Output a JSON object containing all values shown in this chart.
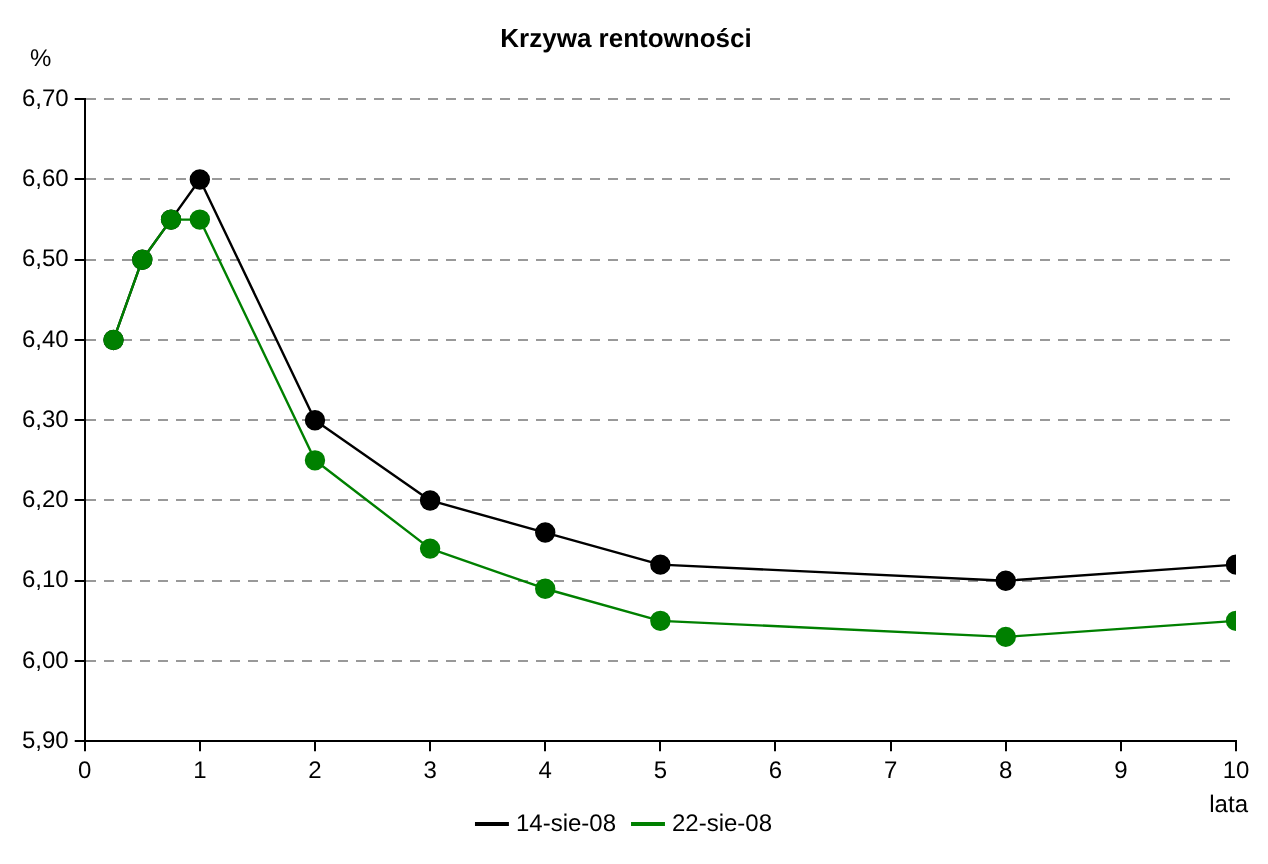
{
  "chart_data": {
    "type": "line",
    "title": "Krzywa rentowności",
    "xlabel": "lata",
    "ylabel": "%",
    "x": [
      0.25,
      0.5,
      0.75,
      1,
      2,
      3,
      4,
      5,
      8,
      10
    ],
    "series": [
      {
        "name": "14-sie-08",
        "color": "#000000",
        "values": [
          6.4,
          6.5,
          6.55,
          6.6,
          6.3,
          6.2,
          6.16,
          6.12,
          6.1,
          6.12
        ]
      },
      {
        "name": "22-sie-08",
        "color": "#008000",
        "values": [
          6.4,
          6.5,
          6.55,
          6.55,
          6.25,
          6.14,
          6.09,
          6.05,
          6.03,
          6.05
        ]
      }
    ],
    "xlim": [
      0,
      10
    ],
    "xticks": [
      0,
      1,
      2,
      3,
      4,
      5,
      6,
      7,
      8,
      9,
      10
    ],
    "ylim": [
      5.9,
      6.7
    ],
    "yticks": [
      {
        "value": 5.9,
        "label": "5,90"
      },
      {
        "value": 6.0,
        "label": "6,00"
      },
      {
        "value": 6.1,
        "label": "6,10"
      },
      {
        "value": 6.2,
        "label": "6,20"
      },
      {
        "value": 6.3,
        "label": "6,30"
      },
      {
        "value": 6.4,
        "label": "6,40"
      },
      {
        "value": 6.5,
        "label": "6,50"
      },
      {
        "value": 6.6,
        "label": "6,60"
      },
      {
        "value": 6.7,
        "label": "6,70"
      }
    ],
    "grid": "y",
    "legend": "bottom",
    "marker": "circle",
    "line_style": "solid"
  }
}
